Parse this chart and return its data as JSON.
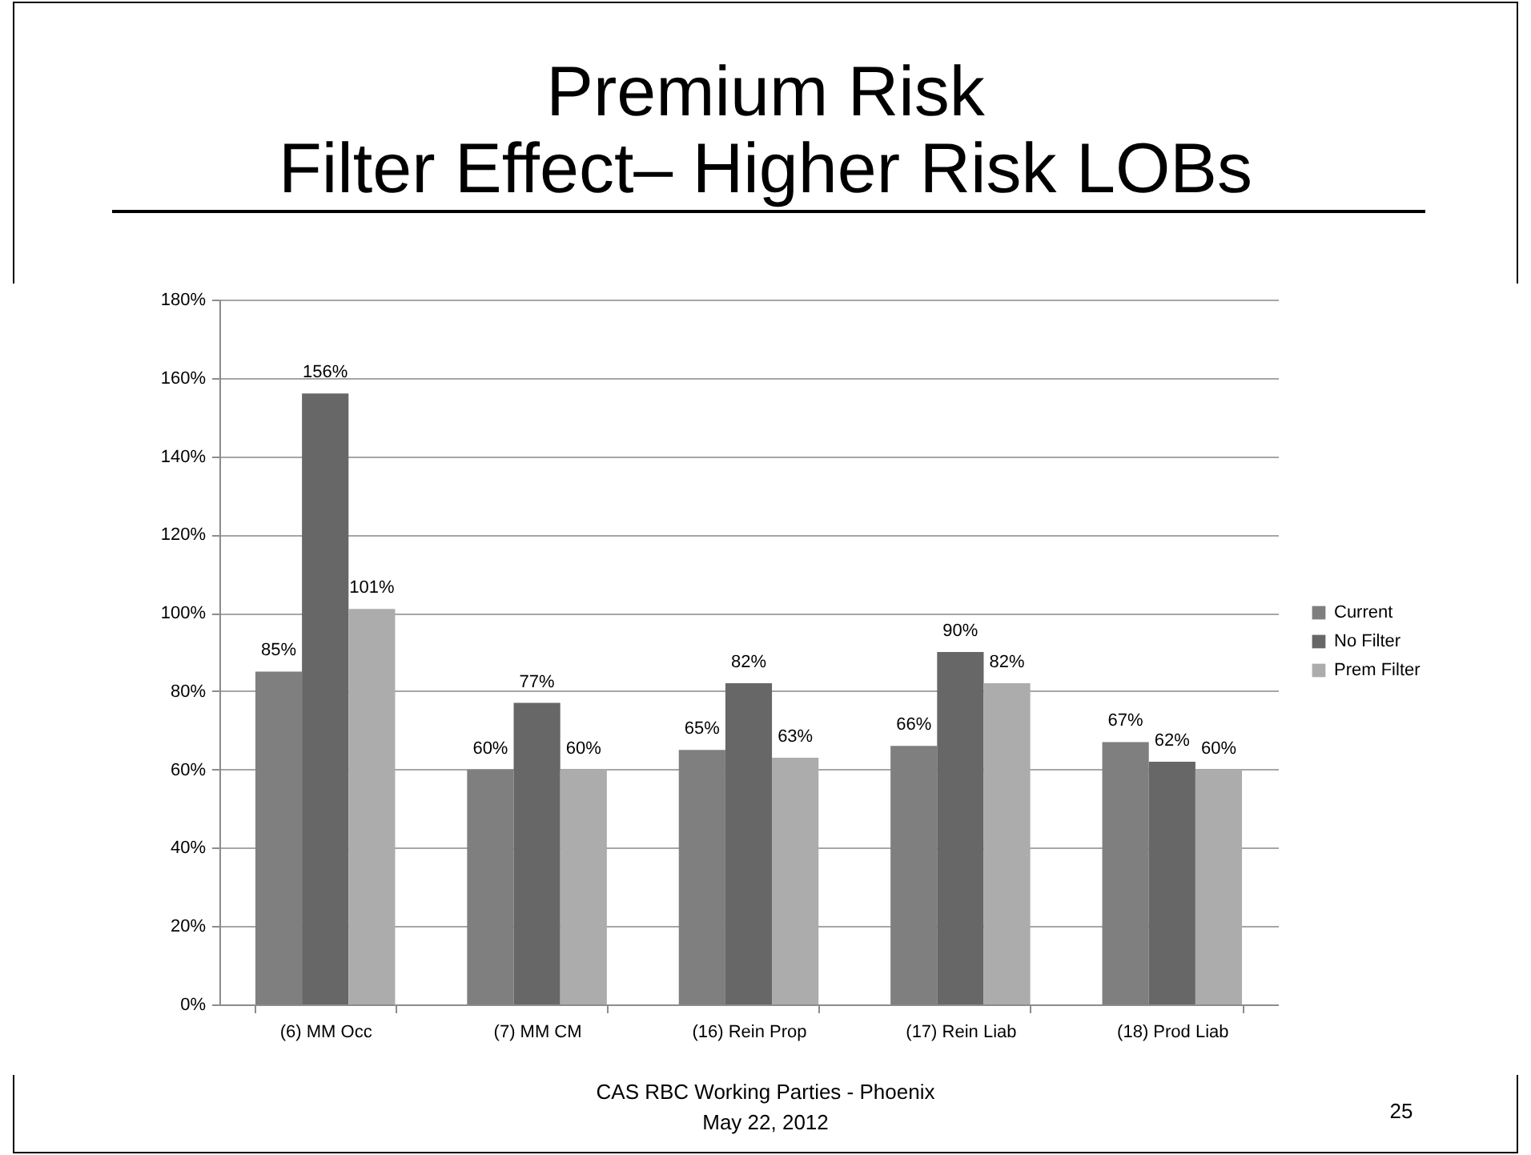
{
  "chart_data": {
    "type": "bar",
    "title": "Premium Risk\nFilter Effect– Higher Risk LOBs",
    "categories": [
      "(6) MM Occ",
      "(7) MM CM",
      "(16) Rein Prop",
      "(17) Rein Liab",
      "(18) Prod Liab"
    ],
    "series": [
      {
        "name": "Current",
        "color": "#7f7f7f",
        "values": [
          85,
          60,
          65,
          66,
          67
        ],
        "value_labels": [
          "85%",
          "60%",
          "65%",
          "66%",
          "67%"
        ]
      },
      {
        "name": "No Filter",
        "color": "#676767",
        "values": [
          156,
          77,
          82,
          90,
          62
        ],
        "value_labels": [
          "156%",
          "77%",
          "82%",
          "90%",
          "62%"
        ]
      },
      {
        "name": "Prem Filter",
        "color": "#acacac",
        "values": [
          101,
          60,
          63,
          82,
          60
        ],
        "value_labels": [
          "101%",
          "60%",
          "63%",
          "82%",
          "60%"
        ]
      }
    ],
    "ylim": [
      0,
      180
    ],
    "yticks": [
      {
        "value": 0,
        "label": "0%"
      },
      {
        "value": 20,
        "label": "20%"
      },
      {
        "value": 40,
        "label": "40%"
      },
      {
        "value": 60,
        "label": "60%"
      },
      {
        "value": 80,
        "label": "80%"
      },
      {
        "value": 100,
        "label": "100%"
      },
      {
        "value": 120,
        "label": "120%"
      },
      {
        "value": 140,
        "label": "140%"
      },
      {
        "value": 160,
        "label": "160%"
      },
      {
        "value": 180,
        "label": "180%"
      }
    ],
    "grid": "y",
    "legend": "right",
    "annotations": [
      "CAS RBC Working Parties - Phoenix",
      "May 22, 2012",
      "25"
    ]
  }
}
